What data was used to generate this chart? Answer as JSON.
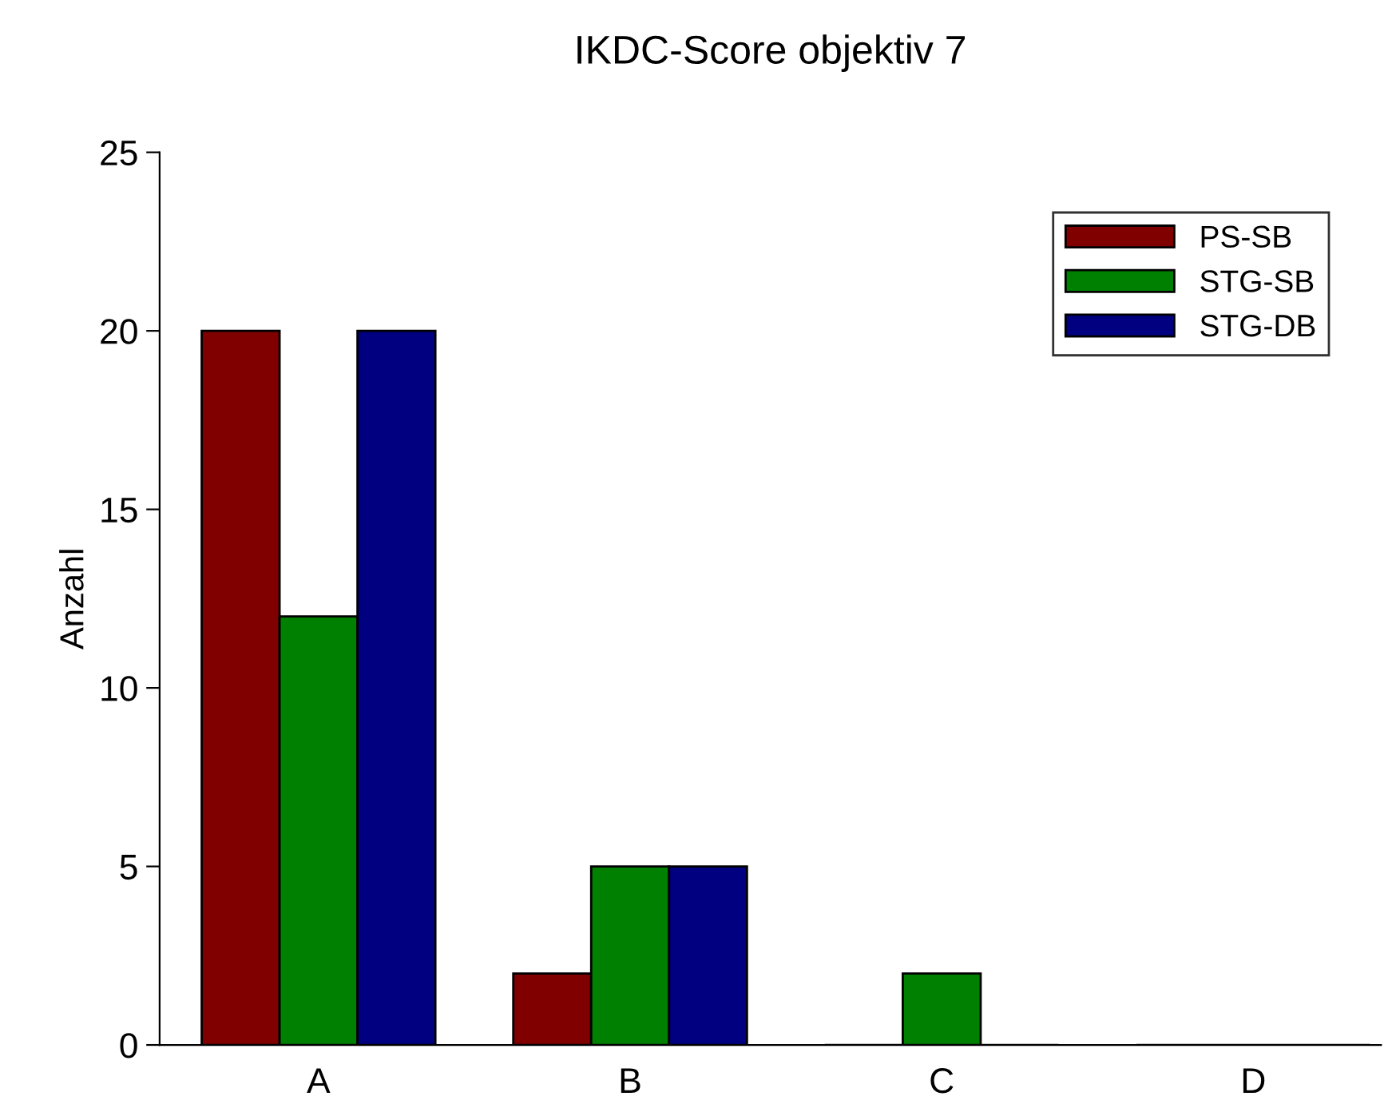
{
  "chart_data": {
    "type": "bar",
    "title": "IKDC-Score objektiv 7",
    "ylabel": "Anzahl",
    "categories": [
      "A",
      "B",
      "C",
      "D"
    ],
    "series": [
      {
        "name": "PS-SB",
        "color": "#800000",
        "values": [
          20,
          2,
          0,
          0
        ]
      },
      {
        "name": "STG-SB",
        "color": "#008000",
        "values": [
          12,
          5,
          2,
          0
        ]
      },
      {
        "name": "STG-DB",
        "color": "#000080",
        "values": [
          20,
          5,
          0,
          0
        ]
      }
    ],
    "ylim": [
      0,
      25
    ],
    "yticks": [
      0,
      5,
      10,
      15,
      20,
      25
    ],
    "grid": false,
    "legend": "top right"
  }
}
